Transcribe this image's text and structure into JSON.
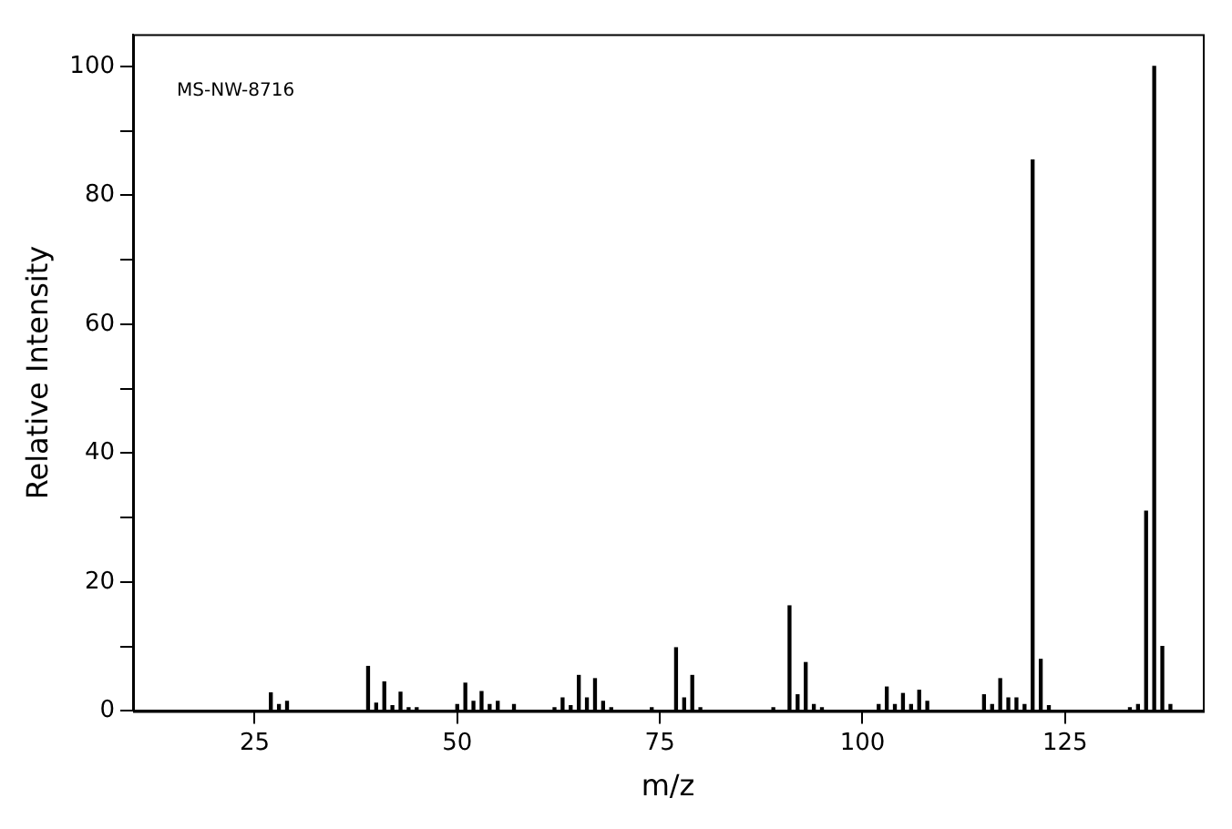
{
  "chart_data": {
    "type": "bar",
    "xlabel": "m/z",
    "ylabel": "Relative Intensity",
    "annotations": [
      "MS-NW-8716"
    ],
    "x": [
      27,
      28,
      29,
      39,
      40,
      41,
      42,
      43,
      44,
      45,
      50,
      51,
      52,
      53,
      54,
      55,
      57,
      62,
      63,
      64,
      65,
      66,
      67,
      68,
      69,
      74,
      77,
      78,
      79,
      80,
      89,
      91,
      92,
      93,
      94,
      95,
      102,
      103,
      104,
      105,
      106,
      107,
      108,
      115,
      116,
      117,
      118,
      119,
      120,
      121,
      122,
      123,
      133,
      134,
      135,
      136,
      137,
      138
    ],
    "series": [
      {
        "color": "#000000",
        "values": [
          2.8,
          1,
          1.5,
          6.9,
          1.2,
          4.5,
          0.8,
          2.9,
          0.5,
          0.5,
          1,
          4.3,
          1.5,
          3,
          1,
          1.5,
          1,
          0.5,
          2,
          0.8,
          5.5,
          2,
          5,
          1.5,
          0.5,
          0.5,
          9.8,
          2,
          5.5,
          0.5,
          0.5,
          16.3,
          2.5,
          7.5,
          1,
          0.5,
          1,
          3.7,
          1,
          2.7,
          1,
          3.2,
          1.5,
          2.5,
          1,
          5,
          2,
          2,
          1,
          85.5,
          8,
          0.8,
          0.5,
          1,
          31,
          100,
          10,
          1
        ]
      }
    ],
    "xlim": [
      10,
      142
    ],
    "xticks": [
      25,
      50,
      75,
      100,
      125
    ],
    "ylim": [
      0,
      105
    ],
    "yticks": [
      0,
      {
        "value": 10,
        "label": null
      },
      20,
      {
        "value": 30,
        "label": null
      },
      40,
      {
        "value": 50,
        "label": null
      },
      60,
      {
        "value": 70,
        "label": null
      },
      80,
      {
        "value": 90,
        "label": null
      },
      100
    ],
    "grid": false,
    "legend": false
  }
}
